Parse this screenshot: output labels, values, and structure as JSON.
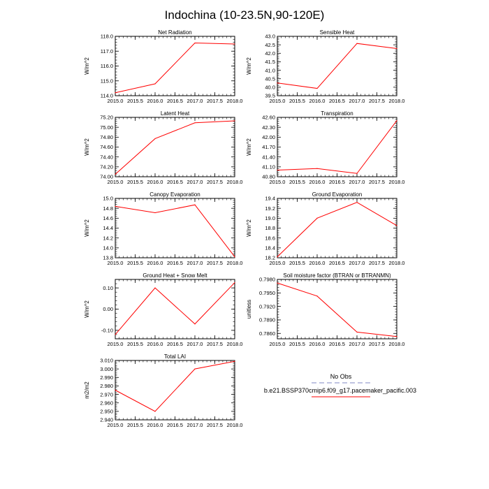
{
  "figure": {
    "title": "Indochina (10-23.5N,90-120E)"
  },
  "legend": {
    "obs_label": "No Obs",
    "model_label": "b.e21.BSSP370cmip6.f09_g17.pacemaker_pacific.003",
    "obs_color": "#aab0d8",
    "model_color": "#ff0000"
  },
  "chart_data": [
    {
      "type": "line",
      "title": "Net Radiation",
      "ylabel": "W/m^2",
      "x": [
        2015,
        2016,
        2017,
        2018
      ],
      "xlim": [
        2015,
        2018
      ],
      "xticks": [
        2015.0,
        2015.5,
        2016.0,
        2016.5,
        2017.0,
        2017.5,
        2018.0
      ],
      "xtick_labels": [
        "2015.0",
        "2015.5",
        "2016.0",
        "2016.5",
        "2017.0",
        "2017.5",
        "2018.0"
      ],
      "ylim": [
        114.0,
        118.0
      ],
      "yticks": [
        114.0,
        115.0,
        116.0,
        117.0,
        118.0
      ],
      "ytick_labels": [
        "114.0",
        "115.0",
        "116.0",
        "117.0",
        "118.0"
      ],
      "series": [
        {
          "name": "b.e21.BSSP370cmip6.f09_g17.pacemaker_pacific.003",
          "values": [
            114.2,
            114.8,
            117.55,
            117.48
          ]
        }
      ]
    },
    {
      "type": "line",
      "title": "Sensible Heat",
      "ylabel": "W/m^2",
      "x": [
        2015,
        2016,
        2017,
        2018
      ],
      "xlim": [
        2015,
        2018
      ],
      "xticks": [
        2015.0,
        2015.5,
        2016.0,
        2016.5,
        2017.0,
        2017.5,
        2018.0
      ],
      "xtick_labels": [
        "2015.0",
        "2015.5",
        "2016.0",
        "2016.5",
        "2017.0",
        "2017.5",
        "2018.0"
      ],
      "ylim": [
        39.5,
        43.0
      ],
      "yticks": [
        39.5,
        40.0,
        40.5,
        41.0,
        41.5,
        42.0,
        42.5,
        43.0
      ],
      "ytick_labels": [
        "39.5",
        "40.0",
        "40.5",
        "41.0",
        "41.5",
        "42.0",
        "42.5",
        "43.0"
      ],
      "series": [
        {
          "name": "b.e21.BSSP370cmip6.f09_g17.pacemaker_pacific.003",
          "values": [
            40.25,
            39.93,
            42.58,
            42.28
          ]
        }
      ]
    },
    {
      "type": "line",
      "title": "Latent Heat",
      "ylabel": "W/m^2",
      "x": [
        2015,
        2016,
        2017,
        2018
      ],
      "xlim": [
        2015,
        2018
      ],
      "xticks": [
        2015.0,
        2015.5,
        2016.0,
        2016.5,
        2017.0,
        2017.5,
        2018.0
      ],
      "xtick_labels": [
        "2015.0",
        "2015.5",
        "2016.0",
        "2016.5",
        "2017.0",
        "2017.5",
        "2018.0"
      ],
      "ylim": [
        74.0,
        75.2
      ],
      "yticks": [
        74.0,
        74.2,
        74.4,
        74.6,
        74.8,
        75.0,
        75.2
      ],
      "ytick_labels": [
        "74.00",
        "74.20",
        "74.40",
        "74.60",
        "74.80",
        "75.00",
        "75.20"
      ],
      "series": [
        {
          "name": "b.e21.BSSP370cmip6.f09_g17.pacemaker_pacific.003",
          "values": [
            74.05,
            74.77,
            75.09,
            75.13
          ]
        }
      ]
    },
    {
      "type": "line",
      "title": "Transpiration",
      "ylabel": "W/m^2",
      "x": [
        2015,
        2016,
        2017,
        2018
      ],
      "xlim": [
        2015,
        2018
      ],
      "xticks": [
        2015.0,
        2015.5,
        2016.0,
        2016.5,
        2017.0,
        2017.5,
        2018.0
      ],
      "xtick_labels": [
        "2015.0",
        "2015.5",
        "2016.0",
        "2016.5",
        "2017.0",
        "2017.5",
        "2018.0"
      ],
      "ylim": [
        40.8,
        42.6
      ],
      "yticks": [
        40.8,
        41.1,
        41.4,
        41.7,
        42.0,
        42.3,
        42.6
      ],
      "ytick_labels": [
        "40.80",
        "41.10",
        "41.40",
        "41.70",
        "42.00",
        "42.30",
        "42.60"
      ],
      "series": [
        {
          "name": "b.e21.BSSP370cmip6.f09_g17.pacemaker_pacific.003",
          "values": [
            41.0,
            41.05,
            40.9,
            42.5
          ]
        }
      ]
    },
    {
      "type": "line",
      "title": "Canopy Evaporation",
      "ylabel": "W/m^2",
      "x": [
        2015,
        2016,
        2017,
        2018
      ],
      "xlim": [
        2015,
        2018
      ],
      "xticks": [
        2015.0,
        2015.5,
        2016.0,
        2016.5,
        2017.0,
        2017.5,
        2018.0
      ],
      "xtick_labels": [
        "2015.0",
        "2015.5",
        "2016.0",
        "2016.5",
        "2017.0",
        "2017.5",
        "2018.0"
      ],
      "ylim": [
        13.8,
        15.0
      ],
      "yticks": [
        13.8,
        14.0,
        14.2,
        14.4,
        14.6,
        14.8,
        15.0
      ],
      "ytick_labels": [
        "13.8",
        "14.0",
        "14.2",
        "14.4",
        "14.6",
        "14.8",
        "15.0"
      ],
      "series": [
        {
          "name": "b.e21.BSSP370cmip6.f09_g17.pacemaker_pacific.003",
          "values": [
            14.84,
            14.71,
            14.87,
            13.82
          ]
        }
      ]
    },
    {
      "type": "line",
      "title": "Ground Evaporation",
      "ylabel": "W/m^2",
      "x": [
        2015,
        2016,
        2017,
        2018
      ],
      "xlim": [
        2015,
        2018
      ],
      "xticks": [
        2015.0,
        2015.5,
        2016.0,
        2016.5,
        2017.0,
        2017.5,
        2018.0
      ],
      "xtick_labels": [
        "2015.0",
        "2015.5",
        "2016.0",
        "2016.5",
        "2017.0",
        "2017.5",
        "2018.0"
      ],
      "ylim": [
        18.2,
        19.4
      ],
      "yticks": [
        18.2,
        18.4,
        18.6,
        18.8,
        19.0,
        19.2,
        19.4
      ],
      "ytick_labels": [
        "18.2",
        "18.4",
        "18.6",
        "18.8",
        "19.0",
        "19.2",
        "19.4"
      ],
      "series": [
        {
          "name": "b.e21.BSSP370cmip6.f09_g17.pacemaker_pacific.003",
          "values": [
            18.22,
            19.0,
            19.32,
            18.85
          ]
        }
      ]
    },
    {
      "type": "line",
      "title": "Ground Heat + Snow Melt",
      "ylabel": "W/m^2",
      "x": [
        2015,
        2016,
        2017,
        2018
      ],
      "xlim": [
        2015,
        2018
      ],
      "xticks": [
        2015.0,
        2015.5,
        2016.0,
        2016.5,
        2017.0,
        2017.5,
        2018.0
      ],
      "xtick_labels": [
        "2015.0",
        "2015.5",
        "2016.0",
        "2016.5",
        "2017.0",
        "2017.5",
        "2018.0"
      ],
      "ylim": [
        -0.14,
        0.14
      ],
      "yticks": [
        -0.1,
        0.0,
        0.1
      ],
      "ytick_labels": [
        "-0.10",
        "0.00",
        "0.10"
      ],
      "series": [
        {
          "name": "b.e21.BSSP370cmip6.f09_g17.pacemaker_pacific.003",
          "values": [
            -0.12,
            0.1,
            -0.07,
            0.125
          ]
        }
      ]
    },
    {
      "type": "line",
      "title": "Soil moisture factor (BTRAN or BTRANMN)",
      "ylabel": "unitless",
      "x": [
        2015,
        2016,
        2017,
        2018
      ],
      "xlim": [
        2015,
        2018
      ],
      "xticks": [
        2015.0,
        2015.5,
        2016.0,
        2016.5,
        2017.0,
        2017.5,
        2018.0
      ],
      "xtick_labels": [
        "2015.0",
        "2015.5",
        "2016.0",
        "2016.5",
        "2017.0",
        "2017.5",
        "2018.0"
      ],
      "ylim": [
        0.7848,
        0.798
      ],
      "yticks": [
        0.786,
        0.789,
        0.792,
        0.795,
        0.798
      ],
      "ytick_labels": [
        "0.7860",
        "0.7890",
        "0.7920",
        "0.7950",
        "0.7980"
      ],
      "series": [
        {
          "name": "b.e21.BSSP370cmip6.f09_g17.pacemaker_pacific.003",
          "values": [
            0.7972,
            0.7943,
            0.7863,
            0.7853
          ]
        }
      ]
    },
    {
      "type": "line",
      "title": "Total LAI",
      "ylabel": "m2/m2",
      "x": [
        2015,
        2016,
        2017,
        2018
      ],
      "xlim": [
        2015,
        2018
      ],
      "xticks": [
        2015.0,
        2015.5,
        2016.0,
        2016.5,
        2017.0,
        2017.5,
        2018.0
      ],
      "xtick_labels": [
        "2015.0",
        "2015.5",
        "2016.0",
        "2016.5",
        "2017.0",
        "2017.5",
        "2018.0"
      ],
      "ylim": [
        2.94,
        3.01
      ],
      "yticks": [
        2.94,
        2.95,
        2.96,
        2.97,
        2.98,
        2.99,
        3.0,
        3.01
      ],
      "ytick_labels": [
        "2.940",
        "2.950",
        "2.960",
        "2.970",
        "2.980",
        "2.990",
        "3.000",
        "3.010"
      ],
      "series": [
        {
          "name": "b.e21.BSSP370cmip6.f09_g17.pacemaker_pacific.003",
          "values": [
            2.975,
            2.95,
            3.0,
            3.009
          ]
        }
      ]
    }
  ]
}
